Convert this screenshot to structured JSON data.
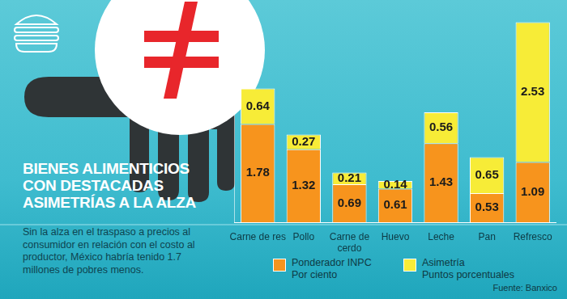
{
  "chart_data": {
    "type": "bar",
    "title": "BIENES ALIMENTICIOS\nCON DESTACADAS\nASIMETRÍAS A LA ALZA",
    "subtitle": "Sin la alza en el traspaso a precios al\nconsumidor en relación con el costo al\nproductor,  México habría tenido 1.7\nmillones de pobres menos.",
    "source": "Fuente: Banxico",
    "categories": [
      "Carne de res",
      "Pollo",
      "Carne de\ncerdo",
      "Huevo",
      "Leche",
      "Pan",
      "Refresco"
    ],
    "series": [
      {
        "name": "Ponderador INPC\nPor ciento",
        "color": "#f7941d",
        "values": [
          1.78,
          1.32,
          0.69,
          0.61,
          1.43,
          0.53,
          1.09
        ]
      },
      {
        "name": "Asimetría\nPuntos porcentuales",
        "color": "#f7ec37",
        "values": [
          0.64,
          0.27,
          0.21,
          0.14,
          0.56,
          0.65,
          2.53
        ]
      }
    ],
    "ylim": [
      0,
      3.7
    ],
    "stacked": true,
    "data_labels": true,
    "tick_labels": "x",
    "grid": false,
    "legend": "bottom"
  }
}
